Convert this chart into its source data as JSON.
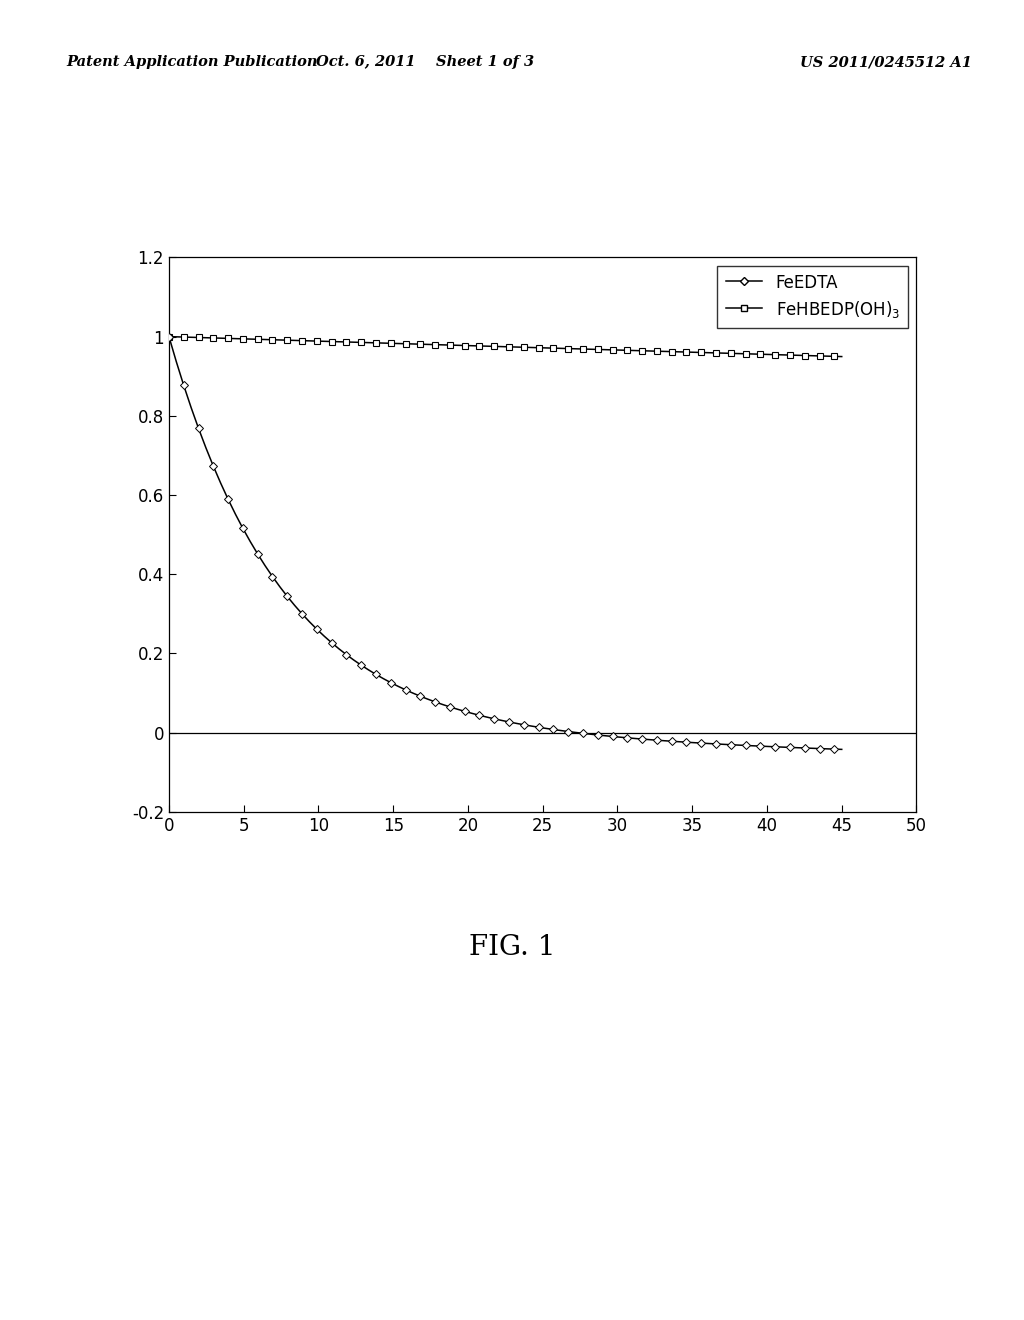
{
  "header_left": "Patent Application Publication",
  "header_center": "Oct. 6, 2011    Sheet 1 of 3",
  "header_right": "US 2011/0245512 A1",
  "xlim": [
    0,
    50
  ],
  "ylim": [
    -0.2,
    1.2
  ],
  "xticks": [
    0,
    5,
    10,
    15,
    20,
    25,
    30,
    35,
    40,
    45,
    50
  ],
  "yticks": [
    -0.2,
    0,
    0.2,
    0.4,
    0.6,
    0.8,
    1,
    1.2
  ],
  "feedta_k": 0.132,
  "fehbedp_k": 0.00115,
  "x_max": 45,
  "n_points": 92,
  "legend_feedta": "FeEDTA",
  "legend_fehbedp": "FeHBEDP(OH)$_3$",
  "title": "FIG. 1",
  "background_color": "#ffffff",
  "line_color": "#000000",
  "figure_width": 10.24,
  "figure_height": 13.2,
  "font_size_ticks": 12,
  "font_size_legend": 12,
  "font_size_title": 20,
  "font_size_header": 10.5
}
